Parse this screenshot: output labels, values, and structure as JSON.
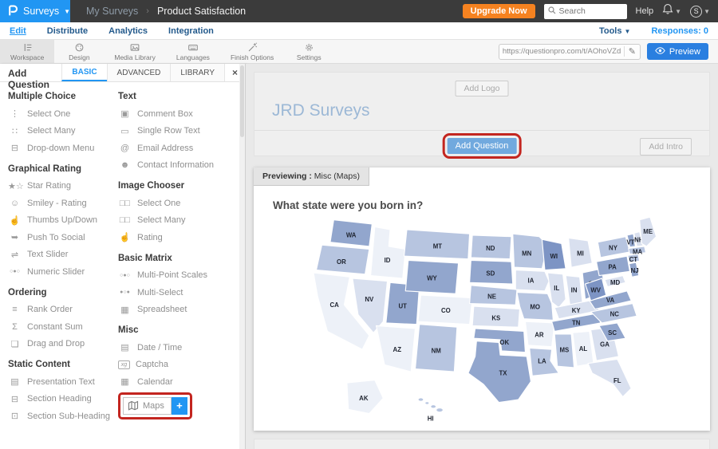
{
  "header": {
    "product_label": "Surveys",
    "breadcrumb": {
      "parent": "My Surveys",
      "separator": "›",
      "current": "Product Satisfaction"
    },
    "upgrade_label": "Upgrade Now",
    "search_placeholder": "Search",
    "help_label": "Help",
    "avatar_initial": "S"
  },
  "nav": {
    "tabs": [
      {
        "label": "Edit",
        "active": true
      },
      {
        "label": "Distribute",
        "active": false
      },
      {
        "label": "Analytics",
        "active": false
      },
      {
        "label": "Integration",
        "active": false
      }
    ],
    "tools_label": "Tools",
    "responses_label": "Responses: 0"
  },
  "toolbar": {
    "tabs": [
      {
        "label": "Workspace",
        "icon": "workspace-icon",
        "active": true
      },
      {
        "label": "Design",
        "icon": "design-palette-icon",
        "active": false
      },
      {
        "label": "Media Library",
        "icon": "media-library-icon",
        "active": false
      },
      {
        "label": "Languages",
        "icon": "languages-keyboard-icon",
        "active": false
      },
      {
        "label": "Finish Options",
        "icon": "finish-options-wand-icon",
        "active": false
      },
      {
        "label": "Settings",
        "icon": "settings-gear-icon",
        "active": false
      }
    ],
    "survey_url": "https://questionpro.com/t/AOhoVZdQ",
    "preview_label": "Preview"
  },
  "panel": {
    "title": "Add Question",
    "tabs": [
      {
        "label": "BASIC",
        "active": true
      },
      {
        "label": "ADVANCED",
        "active": false
      },
      {
        "label": "LIBRARY",
        "active": false
      }
    ],
    "close_label": "×",
    "columns": [
      {
        "sections": [
          {
            "heading": "Multiple Choice",
            "items": [
              {
                "label": "Select One",
                "icon": "select-one-icon"
              },
              {
                "label": "Select Many",
                "icon": "select-many-icon"
              },
              {
                "label": "Drop-down Menu",
                "icon": "dropdown-menu-icon"
              }
            ]
          },
          {
            "heading": "Graphical Rating",
            "items": [
              {
                "label": "Star Rating",
                "icon": "star-rating-icon"
              },
              {
                "label": "Smiley - Rating",
                "icon": "smiley-rating-icon"
              },
              {
                "label": "Thumbs Up/Down",
                "icon": "thumbs-icon"
              },
              {
                "label": "Push To Social",
                "icon": "push-social-icon"
              },
              {
                "label": "Text Slider",
                "icon": "text-slider-icon"
              },
              {
                "label": "Numeric Slider",
                "icon": "numeric-slider-icon"
              }
            ]
          },
          {
            "heading": "Ordering",
            "items": [
              {
                "label": "Rank Order",
                "icon": "rank-order-icon"
              },
              {
                "label": "Constant Sum",
                "icon": "constant-sum-icon"
              },
              {
                "label": "Drag and Drop",
                "icon": "drag-drop-icon"
              }
            ]
          },
          {
            "heading": "Static Content",
            "items": [
              {
                "label": "Presentation Text",
                "icon": "presentation-text-icon"
              },
              {
                "label": "Section Heading",
                "icon": "section-heading-icon"
              },
              {
                "label": "Section Sub-Heading",
                "icon": "section-subheading-icon"
              }
            ]
          }
        ]
      },
      {
        "sections": [
          {
            "heading": "Text",
            "items": [
              {
                "label": "Comment Box",
                "icon": "comment-box-icon"
              },
              {
                "label": "Single Row Text",
                "icon": "single-row-text-icon"
              },
              {
                "label": "Email Address",
                "icon": "email-icon"
              },
              {
                "label": "Contact Information",
                "icon": "contact-info-icon"
              }
            ]
          },
          {
            "heading": "Image Chooser",
            "items": [
              {
                "label": "Select One",
                "icon": "image-select-one-icon"
              },
              {
                "label": "Select Many",
                "icon": "image-select-many-icon"
              },
              {
                "label": "Rating",
                "icon": "image-rating-icon"
              }
            ]
          },
          {
            "heading": "Basic Matrix",
            "items": [
              {
                "label": "Multi-Point Scales",
                "icon": "multi-point-scales-icon"
              },
              {
                "label": "Multi-Select",
                "icon": "multi-select-icon"
              },
              {
                "label": "Spreadsheet",
                "icon": "spreadsheet-icon"
              }
            ]
          },
          {
            "heading": "Misc",
            "items": [
              {
                "label": "Date / Time",
                "icon": "date-time-icon"
              },
              {
                "label": "Captcha",
                "icon": "captcha-icon"
              },
              {
                "label": "Calendar",
                "icon": "calendar-icon"
              },
              {
                "label": "Maps",
                "icon": "maps-icon",
                "highlighted": true,
                "add_label": "+"
              }
            ]
          }
        ]
      }
    ]
  },
  "canvas": {
    "survey_header": {
      "add_logo_label": "Add Logo",
      "title": "JRD Surveys",
      "add_question_label": "Add Question",
      "add_intro_label": "Add Intro"
    },
    "preview": {
      "tab_bold": "Previewing :",
      "tab_rest": " Misc (Maps)",
      "question": "What state were you born in?",
      "map": {
        "states": [
          {
            "abbr": "WA",
            "fill": "#92a6cd"
          },
          {
            "abbr": "OR",
            "fill": "#b7c5e0"
          },
          {
            "abbr": "CA",
            "fill": "#edf1f8"
          },
          {
            "abbr": "ID",
            "fill": "#edf1f8"
          },
          {
            "abbr": "NV",
            "fill": "#d9e0ef"
          },
          {
            "abbr": "UT",
            "fill": "#92a6cd"
          },
          {
            "abbr": "AZ",
            "fill": "#edf1f8"
          },
          {
            "abbr": "MT",
            "fill": "#b7c5e0"
          },
          {
            "abbr": "WY",
            "fill": "#92a6cd"
          },
          {
            "abbr": "CO",
            "fill": "#edf1f8"
          },
          {
            "abbr": "NM",
            "fill": "#b7c5e0"
          },
          {
            "abbr": "ND",
            "fill": "#b7c5e0"
          },
          {
            "abbr": "SD",
            "fill": "#92a6cd"
          },
          {
            "abbr": "NE",
            "fill": "#b7c5e0"
          },
          {
            "abbr": "KS",
            "fill": "#d9e0ef"
          },
          {
            "abbr": "OK",
            "fill": "#92a6cd"
          },
          {
            "abbr": "TX",
            "fill": "#92a6cd"
          },
          {
            "abbr": "MN",
            "fill": "#b7c5e0"
          },
          {
            "abbr": "IA",
            "fill": "#d9e0ef"
          },
          {
            "abbr": "MO",
            "fill": "#b7c5e0"
          },
          {
            "abbr": "AR",
            "fill": "#edf1f8"
          },
          {
            "abbr": "LA",
            "fill": "#b7c5e0"
          },
          {
            "abbr": "WI",
            "fill": "#7d94c4"
          },
          {
            "abbr": "IL",
            "fill": "#d9e0ef"
          },
          {
            "abbr": "MI",
            "fill": "#d9e0ef"
          },
          {
            "abbr": "IN",
            "fill": "#d9e0ef"
          },
          {
            "abbr": "OH",
            "fill": "#92a6cd"
          },
          {
            "abbr": "KY",
            "fill": "#d9e0ef"
          },
          {
            "abbr": "TN",
            "fill": "#92a6cd"
          },
          {
            "abbr": "MS",
            "fill": "#b7c5e0"
          },
          {
            "abbr": "AL",
            "fill": "#edf1f8"
          },
          {
            "abbr": "GA",
            "fill": "#d9e0ef"
          },
          {
            "abbr": "FL",
            "fill": "#d9e0ef"
          },
          {
            "abbr": "SC",
            "fill": "#92a6cd"
          },
          {
            "abbr": "NC",
            "fill": "#b7c5e0"
          },
          {
            "abbr": "VA",
            "fill": "#92a6cd"
          },
          {
            "abbr": "WV",
            "fill": "#7d94c4"
          },
          {
            "abbr": "PA",
            "fill": "#92a6cd"
          },
          {
            "abbr": "NY",
            "fill": "#b7c5e0"
          },
          {
            "abbr": "VT",
            "fill": "#92a6cd"
          },
          {
            "abbr": "NH",
            "fill": "#d9e0ef"
          },
          {
            "abbr": "ME",
            "fill": "#d9e0ef"
          },
          {
            "abbr": "MA",
            "fill": "#b7c5e0"
          },
          {
            "abbr": "CT",
            "fill": "#b7c5e0"
          },
          {
            "abbr": "NJ",
            "fill": "#92a6cd"
          },
          {
            "abbr": "MD",
            "fill": "#d9e0ef"
          },
          {
            "abbr": "AK",
            "fill": "#edf1f8"
          },
          {
            "abbr": "HI",
            "fill": "#b7c5e0"
          }
        ]
      }
    }
  },
  "colors": {
    "accent_blue": "#2196f3",
    "upgrade_orange": "#f58220",
    "highlight_red": "#c3251f",
    "header_dark": "#3b3b3b"
  }
}
